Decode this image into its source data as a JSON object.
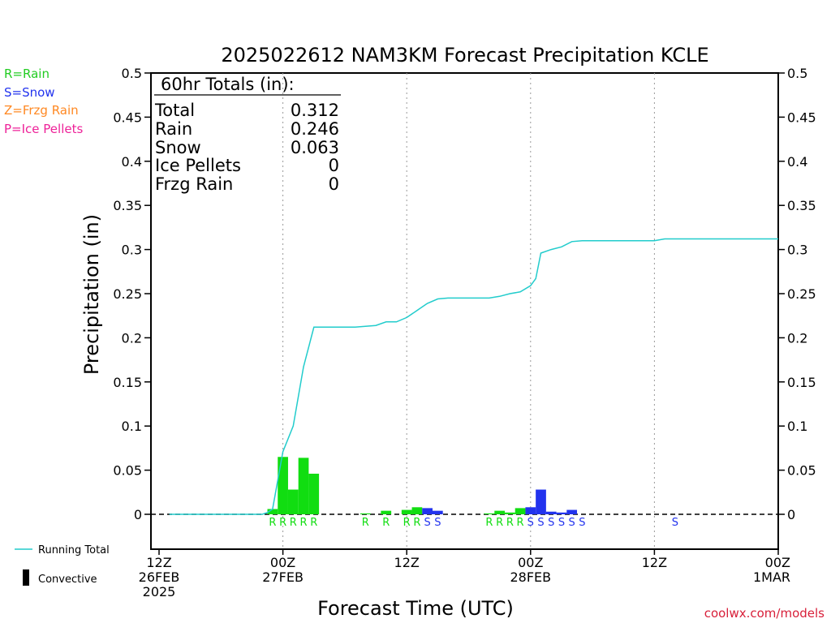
{
  "title": "2025022612 NAM3KM Forecast Precipitation KCLE",
  "ptype_key": [
    {
      "text": "R=Rain",
      "color": "#22cc22"
    },
    {
      "text": "S=Snow",
      "color": "#2233ee"
    },
    {
      "text": "Z=Frzg Rain",
      "color": "#ff8822"
    },
    {
      "text": "P=Ice Pellets",
      "color": "#ee2299"
    }
  ],
  "totals": {
    "header": "60hr Totals (in):",
    "rows": [
      {
        "label": "Total",
        "value": "0.312"
      },
      {
        "label": "Rain",
        "value": "0.246"
      },
      {
        "label": "Snow",
        "value": "0.063"
      },
      {
        "label": "Ice Pellets",
        "value": "0"
      },
      {
        "label": "Frzg Rain",
        "value": "0"
      }
    ]
  },
  "legend": {
    "running_total": "Running Total",
    "convective": "Convective"
  },
  "credit": "coolwx.com/models",
  "colors": {
    "rain": "#11dd11",
    "snow": "#2233ee",
    "running_total": "#22cccc"
  },
  "chart_data": {
    "type": "bar",
    "xlabel": "Forecast Time (UTC)",
    "ylabel": "Precipitation (in)",
    "xlim": [
      0,
      60
    ],
    "ylim": [
      -0.04,
      0.5
    ],
    "yticks": [
      "0",
      "0.05",
      "0.1",
      "0.15",
      "0.2",
      "0.25",
      "0.3",
      "0.35",
      "0.4",
      "0.45",
      "0.5"
    ],
    "xticks": [
      {
        "hour": 0,
        "lines": [
          "12Z",
          "26FEB",
          "2025"
        ]
      },
      {
        "hour": 12,
        "lines": [
          "00Z",
          "27FEB"
        ]
      },
      {
        "hour": 24,
        "lines": [
          "12Z"
        ]
      },
      {
        "hour": 36,
        "lines": [
          "00Z",
          "28FEB"
        ]
      },
      {
        "hour": 48,
        "lines": [
          "12Z"
        ]
      },
      {
        "hour": 60,
        "lines": [
          "00Z",
          "1MAR"
        ]
      }
    ],
    "gridlines_hours": [
      12,
      24,
      36,
      48
    ],
    "bars": [
      {
        "hour": 11,
        "value": 0.006,
        "type": "rain",
        "flag": "R"
      },
      {
        "hour": 12,
        "value": 0.065,
        "type": "rain",
        "flag": "R"
      },
      {
        "hour": 13,
        "value": 0.028,
        "type": "rain",
        "flag": "R"
      },
      {
        "hour": 14,
        "value": 0.064,
        "type": "rain",
        "flag": "R"
      },
      {
        "hour": 15,
        "value": 0.046,
        "type": "rain",
        "flag": "R"
      },
      {
        "hour": 20,
        "value": 0.001,
        "type": "rain",
        "flag": "R"
      },
      {
        "hour": 22,
        "value": 0.004,
        "type": "rain",
        "flag": "R"
      },
      {
        "hour": 24,
        "value": 0.005,
        "type": "rain",
        "flag": "R"
      },
      {
        "hour": 25,
        "value": 0.008,
        "type": "rain",
        "flag": "R"
      },
      {
        "hour": 26,
        "value": 0.007,
        "type": "snow",
        "flag": "S"
      },
      {
        "hour": 27,
        "value": 0.004,
        "type": "snow",
        "flag": "S"
      },
      {
        "hour": 32,
        "value": 0.001,
        "type": "rain",
        "flag": "R"
      },
      {
        "hour": 33,
        "value": 0.004,
        "type": "rain",
        "flag": "R"
      },
      {
        "hour": 34,
        "value": 0.002,
        "type": "rain",
        "flag": "R"
      },
      {
        "hour": 35,
        "value": 0.007,
        "type": "rain",
        "flag": "R"
      },
      {
        "hour": 36,
        "value": 0.008,
        "type": "snow",
        "flag": "S"
      },
      {
        "hour": 37,
        "value": 0.028,
        "type": "snow",
        "flag": "S"
      },
      {
        "hour": 38,
        "value": 0.003,
        "type": "snow",
        "flag": "S"
      },
      {
        "hour": 39,
        "value": 0.002,
        "type": "snow",
        "flag": "S"
      },
      {
        "hour": 40,
        "value": 0.005,
        "type": "snow",
        "flag": "S"
      },
      {
        "hour": 41,
        "value": 0.0,
        "type": "snow",
        "flag": "S"
      },
      {
        "hour": 50,
        "value": 0.0,
        "type": "snow",
        "flag": "S"
      }
    ],
    "running_total": [
      {
        "hour": 1,
        "value": 0
      },
      {
        "hour": 10,
        "value": 0
      },
      {
        "hour": 10.5,
        "value": 0.002
      },
      {
        "hour": 11,
        "value": 0.006
      },
      {
        "hour": 12,
        "value": 0.071
      },
      {
        "hour": 13,
        "value": 0.1
      },
      {
        "hour": 14,
        "value": 0.167
      },
      {
        "hour": 15,
        "value": 0.212
      },
      {
        "hour": 16,
        "value": 0.212
      },
      {
        "hour": 19,
        "value": 0.212
      },
      {
        "hour": 20,
        "value": 0.213
      },
      {
        "hour": 21,
        "value": 0.214
      },
      {
        "hour": 22,
        "value": 0.218
      },
      {
        "hour": 23,
        "value": 0.218
      },
      {
        "hour": 24,
        "value": 0.223
      },
      {
        "hour": 25,
        "value": 0.231
      },
      {
        "hour": 26,
        "value": 0.239
      },
      {
        "hour": 27,
        "value": 0.244
      },
      {
        "hour": 28,
        "value": 0.245
      },
      {
        "hour": 32,
        "value": 0.245
      },
      {
        "hour": 33,
        "value": 0.247
      },
      {
        "hour": 34,
        "value": 0.25
      },
      {
        "hour": 35,
        "value": 0.252
      },
      {
        "hour": 36,
        "value": 0.259
      },
      {
        "hour": 36.5,
        "value": 0.267
      },
      {
        "hour": 37,
        "value": 0.296
      },
      {
        "hour": 38,
        "value": 0.3
      },
      {
        "hour": 39,
        "value": 0.303
      },
      {
        "hour": 40,
        "value": 0.309
      },
      {
        "hour": 41,
        "value": 0.31
      },
      {
        "hour": 48,
        "value": 0.31
      },
      {
        "hour": 49,
        "value": 0.312
      },
      {
        "hour": 60,
        "value": 0.312
      }
    ]
  }
}
